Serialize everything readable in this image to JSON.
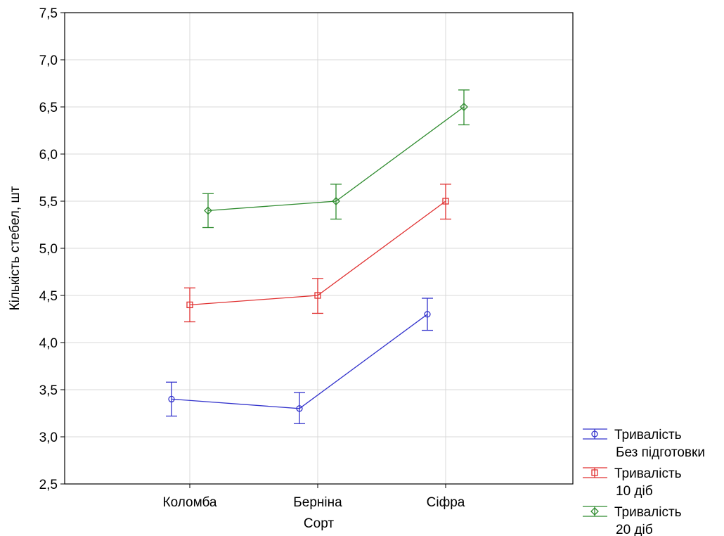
{
  "chart_data": {
    "type": "line",
    "xlabel": "Сорт",
    "ylabel": "Кількість стебел, шт",
    "categories": [
      "Коломба",
      "Берніна",
      "Сіфра"
    ],
    "ylim": [
      2.5,
      7.5
    ],
    "yticks": [
      "2,5",
      "3,0",
      "3,5",
      "4,0",
      "4,5",
      "5,0",
      "5,5",
      "6,0",
      "6,5",
      "7,0",
      "7,5"
    ],
    "grid": true,
    "legend_position": "bottom-right, outside plot",
    "series": [
      {
        "name": "Тривалість Без підготовки",
        "legend_line1": "Тривалість",
        "legend_line2": "Без підготовки",
        "color": "#3333cc",
        "marker": "circle",
        "values": [
          3.4,
          3.3,
          4.3
        ],
        "err_low": [
          3.22,
          3.14,
          4.13
        ],
        "err_high": [
          3.58,
          3.47,
          4.47
        ]
      },
      {
        "name": "Тривалість 10 діб",
        "legend_line1": "Тривалість",
        "legend_line2": "10 діб",
        "color": "#e03030",
        "marker": "square",
        "values": [
          4.4,
          4.5,
          5.5
        ],
        "err_low": [
          4.22,
          4.31,
          5.31
        ],
        "err_high": [
          4.58,
          4.68,
          5.68
        ]
      },
      {
        "name": "Тривалість 20 діб",
        "legend_line1": "Тривалість",
        "legend_line2": "20 діб",
        "color": "#2e8b2e",
        "marker": "diamond",
        "values": [
          5.4,
          5.5,
          6.5
        ],
        "err_low": [
          5.22,
          5.31,
          6.31
        ],
        "err_high": [
          5.58,
          5.68,
          6.68
        ]
      }
    ]
  }
}
